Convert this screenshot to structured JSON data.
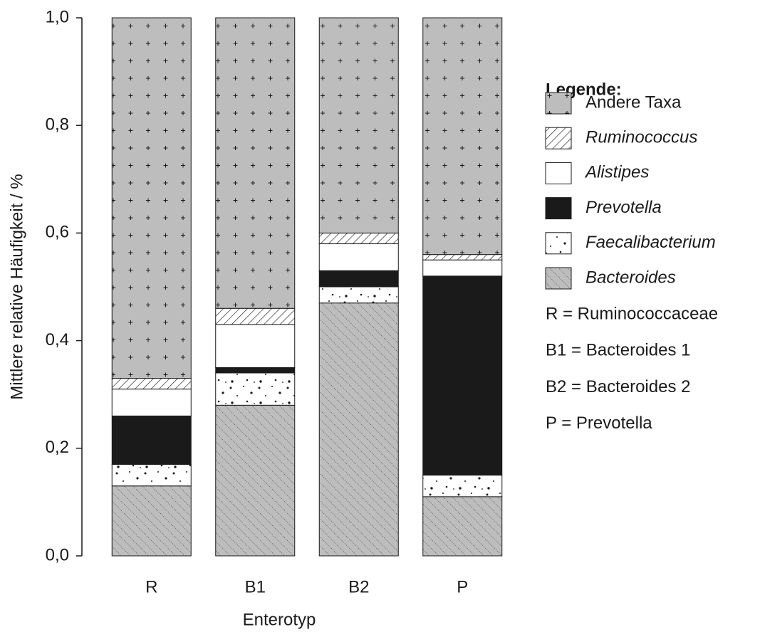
{
  "chart_data": {
    "type": "stacked_bar",
    "y_label": "Mittlere relative Häufigkeit / %",
    "x_label": "Enterotyp",
    "categories": [
      "R",
      "B1",
      "B2",
      "P"
    ],
    "series": [
      {
        "name": "Bacteroides",
        "color": "#bdbdbd",
        "pattern": "diagonal",
        "italic": true,
        "values": [
          0.13,
          0.28,
          0.47,
          0.11
        ]
      },
      {
        "name": "Faecalibacterium",
        "color": "#ffffff",
        "pattern": "dots",
        "italic": true,
        "values": [
          0.04,
          0.06,
          0.03,
          0.04
        ]
      },
      {
        "name": "Prevotella",
        "color": "#1a1a1a",
        "pattern": "none",
        "italic": true,
        "values": [
          0.09,
          0.01,
          0.03,
          0.37
        ]
      },
      {
        "name": "Alistipes",
        "color": "#ffffff",
        "pattern": "none",
        "italic": true,
        "values": [
          0.05,
          0.08,
          0.05,
          0.03
        ]
      },
      {
        "name": "Ruminococcus",
        "color": "#ffffff",
        "pattern": "hatch",
        "italic": true,
        "values": [
          0.02,
          0.03,
          0.02,
          0.01
        ]
      },
      {
        "name": "Andere Taxa",
        "color": "#bdbdbd",
        "pattern": "plus",
        "italic": false,
        "values": [
          0.67,
          0.54,
          0.4,
          0.44
        ]
      }
    ],
    "ylim": [
      0,
      1
    ],
    "yticks": [
      {
        "value": 0,
        "label": "0,0"
      },
      {
        "value": 0.2,
        "label": "0,2"
      },
      {
        "value": 0.4,
        "label": "0,4"
      },
      {
        "value": 0.6,
        "label": "0,6"
      },
      {
        "value": 0.8,
        "label": "0,8"
      },
      {
        "value": 1,
        "label": "1,0"
      }
    ],
    "legend_title": "Legende:",
    "notes": [
      "R = Ruminococcaceae",
      "B1 = Bacteroides 1",
      "B2 = Bacteroides 2",
      "P = Prevotella"
    ]
  }
}
